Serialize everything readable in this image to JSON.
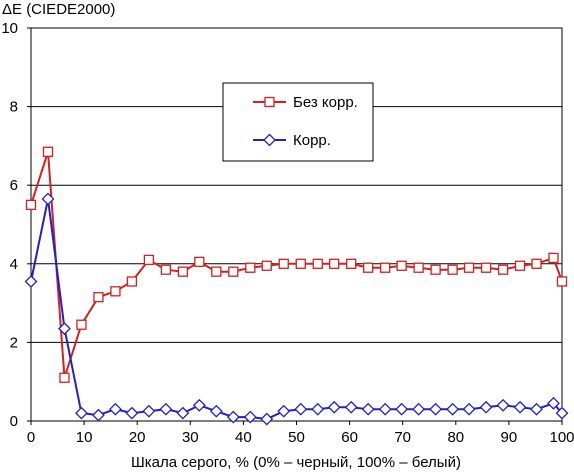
{
  "chart_data": {
    "type": "line",
    "title": "",
    "ylabel": "ΔE (CIEDE2000)",
    "xlabel": "Шкала серого, % (0% – черный, 100% – белый)",
    "xlim": [
      0,
      100
    ],
    "ylim": [
      0,
      10
    ],
    "x_ticks": [
      0,
      10,
      20,
      30,
      40,
      50,
      60,
      70,
      80,
      90,
      100
    ],
    "y_ticks": [
      0,
      2,
      4,
      6,
      8,
      10
    ],
    "grid": "horizontal",
    "legend_position": "top-center",
    "x": [
      0,
      3.2,
      6.3,
      9.5,
      12.7,
      15.9,
      19.0,
      22.2,
      25.4,
      28.6,
      31.7,
      34.9,
      38.1,
      41.3,
      44.4,
      47.6,
      50.8,
      54.0,
      57.1,
      60.3,
      63.5,
      66.7,
      69.8,
      73.0,
      76.2,
      79.4,
      82.5,
      85.7,
      88.9,
      92.1,
      95.2,
      98.4,
      100
    ],
    "series": [
      {
        "name": "Без корр.",
        "color": "#d42020",
        "marker": "square",
        "values": [
          5.5,
          6.85,
          1.1,
          2.45,
          3.15,
          3.3,
          3.55,
          4.1,
          3.85,
          3.8,
          4.05,
          3.8,
          3.8,
          3.9,
          3.95,
          4.0,
          4.0,
          4.0,
          4.0,
          4.0,
          3.9,
          3.9,
          3.95,
          3.9,
          3.85,
          3.85,
          3.9,
          3.9,
          3.85,
          3.95,
          4.0,
          4.15,
          3.55
        ]
      },
      {
        "name": "Корр.",
        "color": "#2020cc",
        "marker": "diamond",
        "values": [
          3.55,
          5.65,
          2.35,
          0.2,
          0.15,
          0.3,
          0.2,
          0.25,
          0.3,
          0.2,
          0.4,
          0.25,
          0.1,
          0.1,
          0.05,
          0.25,
          0.3,
          0.3,
          0.35,
          0.35,
          0.3,
          0.3,
          0.3,
          0.3,
          0.3,
          0.3,
          0.3,
          0.35,
          0.4,
          0.35,
          0.3,
          0.45,
          0.2
        ]
      }
    ]
  }
}
